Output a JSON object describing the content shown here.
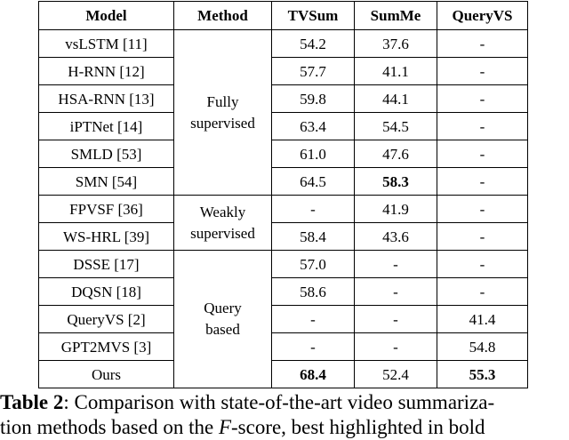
{
  "table": {
    "headers": [
      "Model",
      "Method",
      "TVSum",
      "SumMe",
      "QueryVS"
    ],
    "groups": [
      {
        "method_line1": "Fully",
        "method_line2": "supervised",
        "rows": [
          {
            "model": "vsLSTM [11]",
            "tvsum": "54.2",
            "summe": "37.6",
            "queryvs": "-"
          },
          {
            "model": "H-RNN [12]",
            "tvsum": "57.7",
            "summe": "41.1",
            "queryvs": "-"
          },
          {
            "model": "HSA-RNN [13]",
            "tvsum": "59.8",
            "summe": "44.1",
            "queryvs": "-"
          },
          {
            "model": "iPTNet [14]",
            "tvsum": "63.4",
            "summe": "54.5",
            "queryvs": "-"
          },
          {
            "model": "SMLD [53]",
            "tvsum": "61.0",
            "summe": "47.6",
            "queryvs": "-"
          },
          {
            "model": "SMN [54]",
            "tvsum": "64.5",
            "summe": "58.3",
            "queryvs": "-"
          }
        ]
      },
      {
        "method_line1": "Weakly",
        "method_line2": "supervised",
        "rows": [
          {
            "model": "FPVSF [36]",
            "tvsum": "-",
            "summe": "41.9",
            "queryvs": "-"
          },
          {
            "model": "WS-HRL [39]",
            "tvsum": "58.4",
            "summe": "43.6",
            "queryvs": "-"
          }
        ]
      },
      {
        "method_line1": "Query",
        "method_line2": "based",
        "rows": [
          {
            "model": "DSSE [17]",
            "tvsum": "57.0",
            "summe": "-",
            "queryvs": "-"
          },
          {
            "model": "DQSN [18]",
            "tvsum": "58.6",
            "summe": "-",
            "queryvs": "-"
          },
          {
            "model": "QueryVS [2]",
            "tvsum": "-",
            "summe": "-",
            "queryvs": "41.4"
          },
          {
            "model": "GPT2MVS [3]",
            "tvsum": "-",
            "summe": "-",
            "queryvs": "54.8"
          },
          {
            "model": "Ours",
            "tvsum": "68.4",
            "summe": "52.4",
            "queryvs": "55.3"
          }
        ]
      }
    ]
  },
  "caption": {
    "label": "Table 2",
    "text": ": Comparison with state-of-the-art video summariza-",
    "line2_a": "tion methods based on the ",
    "line2_var": "F",
    "line2_b": "-score, best highlighted in bold"
  }
}
